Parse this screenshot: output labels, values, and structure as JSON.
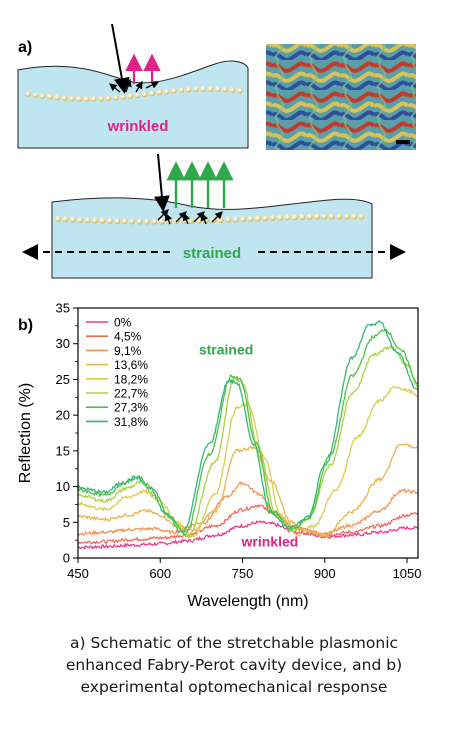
{
  "panel_a": {
    "label": "a)",
    "wrinkled_label": "wrinkled",
    "strained_label": "strained",
    "colors": {
      "substrate": "#bfe6f0",
      "incident": "#000000",
      "reflect_wrinkled": "#e0218a",
      "reflect_strained": "#2ea84a",
      "particle": "#e9cf8a"
    }
  },
  "panel_b": {
    "label": "b)"
  },
  "chart_data": {
    "type": "line",
    "xlabel": "Wavelength (nm)",
    "ylabel": "Reflection (%)",
    "xlim": [
      450,
      1070
    ],
    "ylim": [
      0,
      35
    ],
    "xticks": [
      450,
      600,
      750,
      900,
      1050
    ],
    "yticks": [
      0,
      5,
      10,
      15,
      20,
      25,
      30,
      35
    ],
    "legend_position": "top-left",
    "annotations": [
      {
        "text": "strained",
        "x": 720,
        "y": 28.5,
        "color": "#2ea84a"
      },
      {
        "text": "wrinkled",
        "x": 800,
        "y": 1.6,
        "color": "#e0218a"
      }
    ],
    "series": [
      {
        "name": "0%",
        "color": "#ec3a8c",
        "x": [
          450,
          500,
          550,
          600,
          650,
          700,
          750,
          780,
          800,
          850,
          900,
          950,
          1000,
          1050,
          1070
        ],
        "y": [
          1.5,
          1.6,
          1.8,
          2.0,
          2.4,
          3.2,
          4.5,
          5.0,
          4.8,
          3.6,
          3.0,
          3.2,
          3.6,
          4.2,
          4.2
        ]
      },
      {
        "name": "4,5%",
        "color": "#f06a58",
        "x": [
          450,
          500,
          550,
          600,
          650,
          700,
          750,
          780,
          800,
          850,
          900,
          950,
          1000,
          1050,
          1070
        ],
        "y": [
          2.2,
          2.3,
          2.6,
          2.8,
          3.2,
          4.5,
          6.8,
          7.4,
          6.5,
          4.2,
          3.2,
          3.6,
          4.5,
          6.0,
          6.3
        ]
      },
      {
        "name": "9,1%",
        "color": "#f19552",
        "x": [
          450,
          500,
          550,
          590,
          620,
          680,
          720,
          750,
          780,
          810,
          850,
          900,
          950,
          1000,
          1040,
          1070
        ],
        "y": [
          3.4,
          3.6,
          4.0,
          4.1,
          3.6,
          5.0,
          8.5,
          10.5,
          9.0,
          6.0,
          4.0,
          3.4,
          4.6,
          6.6,
          9.4,
          9.2
        ]
      },
      {
        "name": "13,6%",
        "color": "#e9b350",
        "x": [
          450,
          500,
          540,
          575,
          600,
          630,
          660,
          700,
          740,
          770,
          800,
          840,
          870,
          900,
          950,
          1000,
          1040,
          1070
        ],
        "y": [
          5.8,
          5.4,
          6.0,
          6.6,
          6.0,
          4.5,
          3.8,
          6.6,
          15.0,
          15.5,
          11.0,
          5.0,
          3.6,
          3.2,
          6.5,
          11.0,
          16.0,
          15.4
        ]
      },
      {
        "name": "18,2%",
        "color": "#d9ce4a",
        "x": [
          450,
          500,
          540,
          570,
          600,
          630,
          660,
          700,
          740,
          760,
          790,
          820,
          850,
          880,
          920,
          960,
          1000,
          1030,
          1050,
          1070
        ],
        "y": [
          7.6,
          6.8,
          8.5,
          9.3,
          8.0,
          5.0,
          3.0,
          9.0,
          21.0,
          21.5,
          14.0,
          6.0,
          3.2,
          4.5,
          9.5,
          17.0,
          22.0,
          24.0,
          23.5,
          22.6
        ]
      },
      {
        "name": "22,7%",
        "color": "#a6d43f",
        "x": [
          450,
          500,
          540,
          565,
          590,
          620,
          650,
          700,
          735,
          750,
          780,
          810,
          840,
          870,
          910,
          950,
          990,
          1020,
          1050,
          1070
        ],
        "y": [
          8.8,
          8.0,
          9.8,
          10.6,
          8.8,
          5.5,
          3.0,
          13.5,
          25.0,
          24.5,
          15.0,
          6.5,
          3.8,
          5.5,
          13.0,
          23.0,
          28.5,
          29.5,
          27.0,
          24.0
        ]
      },
      {
        "name": "27,3%",
        "color": "#4fc146",
        "x": [
          450,
          500,
          535,
          560,
          585,
          615,
          645,
          690,
          730,
          745,
          775,
          805,
          840,
          870,
          910,
          950,
          990,
          1010,
          1040,
          1070
        ],
        "y": [
          9.5,
          8.8,
          10.5,
          11.3,
          9.8,
          6.0,
          3.4,
          14.5,
          25.5,
          25.0,
          16.0,
          6.5,
          4.0,
          5.5,
          14.5,
          25.5,
          31.0,
          32.0,
          29.0,
          24.5
        ]
      },
      {
        "name": "31,8%",
        "color": "#31b978",
        "x": [
          450,
          500,
          530,
          555,
          580,
          610,
          640,
          690,
          725,
          740,
          770,
          800,
          835,
          870,
          900,
          950,
          980,
          1000,
          1030,
          1070
        ],
        "y": [
          9.8,
          9.2,
          10.5,
          11.3,
          9.8,
          6.2,
          3.6,
          16.0,
          24.8,
          24.5,
          16.0,
          6.5,
          4.2,
          5.8,
          13.0,
          28.0,
          32.5,
          33.0,
          29.0,
          23.5
        ]
      }
    ]
  },
  "caption": {
    "line1": "a) Schematic of the stretchable plasmonic",
    "line2": "enhanced Fabry-Perot cavity device, and b)",
    "line3": "experimental optomechanical response"
  }
}
